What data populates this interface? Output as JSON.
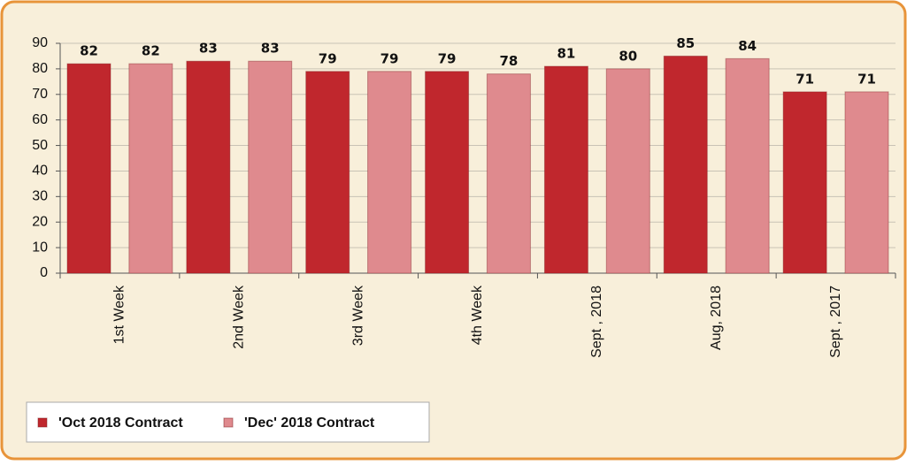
{
  "chart_data": {
    "type": "bar",
    "categories": [
      "1st Week",
      "2nd Week",
      "3rd Week",
      "4th Week",
      "Sept , 2018",
      "Aug, 2018",
      "Sept , 2017"
    ],
    "series": [
      {
        "name": "'Oct 2018 Contract",
        "color": "#c0272d",
        "values": [
          82,
          83,
          79,
          79,
          81,
          85,
          71
        ]
      },
      {
        "name": "'Dec' 2018 Contract",
        "color": "#df8a8e",
        "values": [
          82,
          83,
          79,
          78,
          80,
          84,
          71
        ]
      }
    ],
    "ylim": [
      0,
      90
    ],
    "yticks": [
      0,
      10,
      20,
      30,
      40,
      50,
      60,
      70,
      80,
      90
    ],
    "grid": true,
    "legend": "bottom-left"
  }
}
